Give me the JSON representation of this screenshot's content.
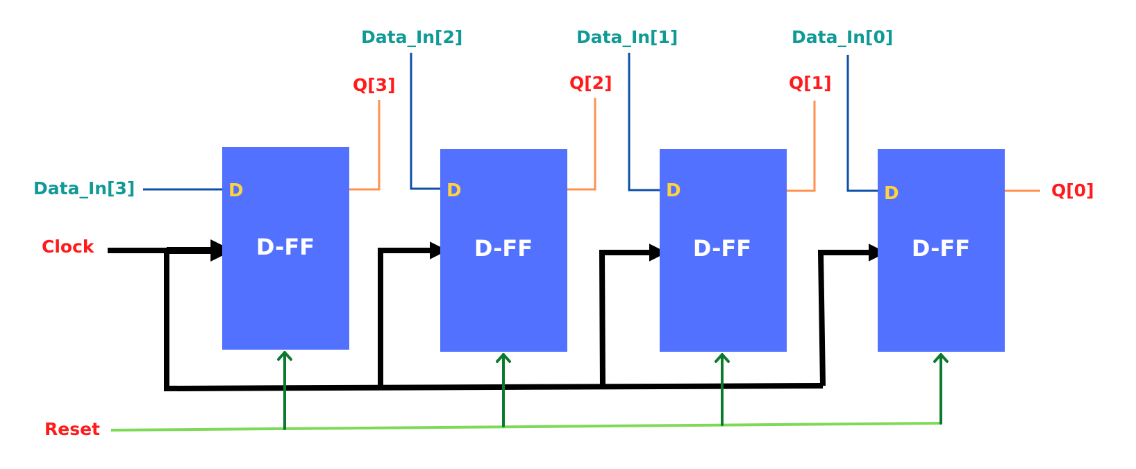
{
  "colors": {
    "block": "#5271ff",
    "data_wire": "#0d4fa8",
    "q_wire": "#ff914d",
    "clock_wire": "#000000",
    "reset_wire": "#7ed957",
    "reset_arrow": "#0b7a2e",
    "label_teal": "#0f9a96",
    "label_red": "#ff1b1b",
    "d_pin": "#ffd23f"
  },
  "labels": {
    "data_in_3": "Data_In[3]",
    "data_in_2": "Data_In[2]",
    "data_in_1": "Data_In[1]",
    "data_in_0": "Data_In[0]",
    "q_3": "Q[3]",
    "q_2": "Q[2]",
    "q_1": "Q[1]",
    "q_0": "Q[0]",
    "clock": "Clock",
    "reset": "Reset"
  },
  "flip_flops": [
    {
      "title": "D-FF",
      "d_pin": "D"
    },
    {
      "title": "D-FF",
      "d_pin": "D"
    },
    {
      "title": "D-FF",
      "d_pin": "D"
    },
    {
      "title": "D-FF",
      "d_pin": "D"
    }
  ]
}
